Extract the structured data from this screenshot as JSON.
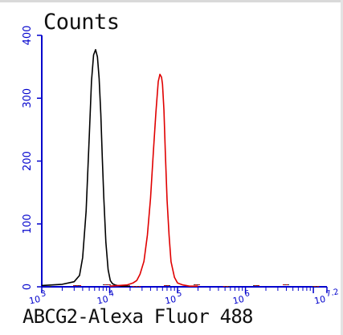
{
  "chart_data": {
    "type": "line",
    "title": "",
    "ylabel": "Counts",
    "xlabel": "ABCG2-Alexa Fluor 488",
    "x_scale": "log",
    "xlim": [
      1000,
      15848931
    ],
    "ylim": [
      0,
      400
    ],
    "x_ticks": [
      {
        "base": "10",
        "exp": "3"
      },
      {
        "base": "10",
        "exp": "4"
      },
      {
        "base": "10",
        "exp": "5"
      },
      {
        "base": "10",
        "exp": "6"
      },
      {
        "base": "10",
        "exp": "7.2"
      }
    ],
    "y_ticks": [
      "0",
      "100",
      "200",
      "300",
      "400"
    ],
    "grid": false,
    "legend": "none",
    "series": [
      {
        "color": "#000000",
        "x": [
          1000,
          2000,
          3000,
          3600,
          4000,
          4500,
          5000,
          5400,
          5800,
          6200,
          6600,
          7000,
          7400,
          7800,
          8200,
          8800,
          9500,
          10200,
          11000,
          12000,
          13000,
          15000,
          20000
        ],
        "y": [
          2,
          4,
          8,
          18,
          45,
          120,
          240,
          325,
          368,
          378,
          368,
          330,
          275,
          205,
          140,
          70,
          28,
          10,
          5,
          3,
          2,
          1,
          1
        ]
      },
      {
        "color": "#e00000",
        "x": [
          10000,
          18000,
          22000,
          25000,
          28000,
          32000,
          36000,
          40000,
          44000,
          48000,
          52000,
          55000,
          58000,
          60000,
          63000,
          66000,
          70000,
          75000,
          80000,
          90000,
          100000,
          120000,
          150000,
          200000
        ],
        "y": [
          1,
          3,
          6,
          10,
          20,
          42,
          80,
          140,
          215,
          280,
          325,
          338,
          335,
          320,
          280,
          215,
          140,
          80,
          40,
          15,
          6,
          3,
          1,
          1
        ]
      }
    ]
  }
}
